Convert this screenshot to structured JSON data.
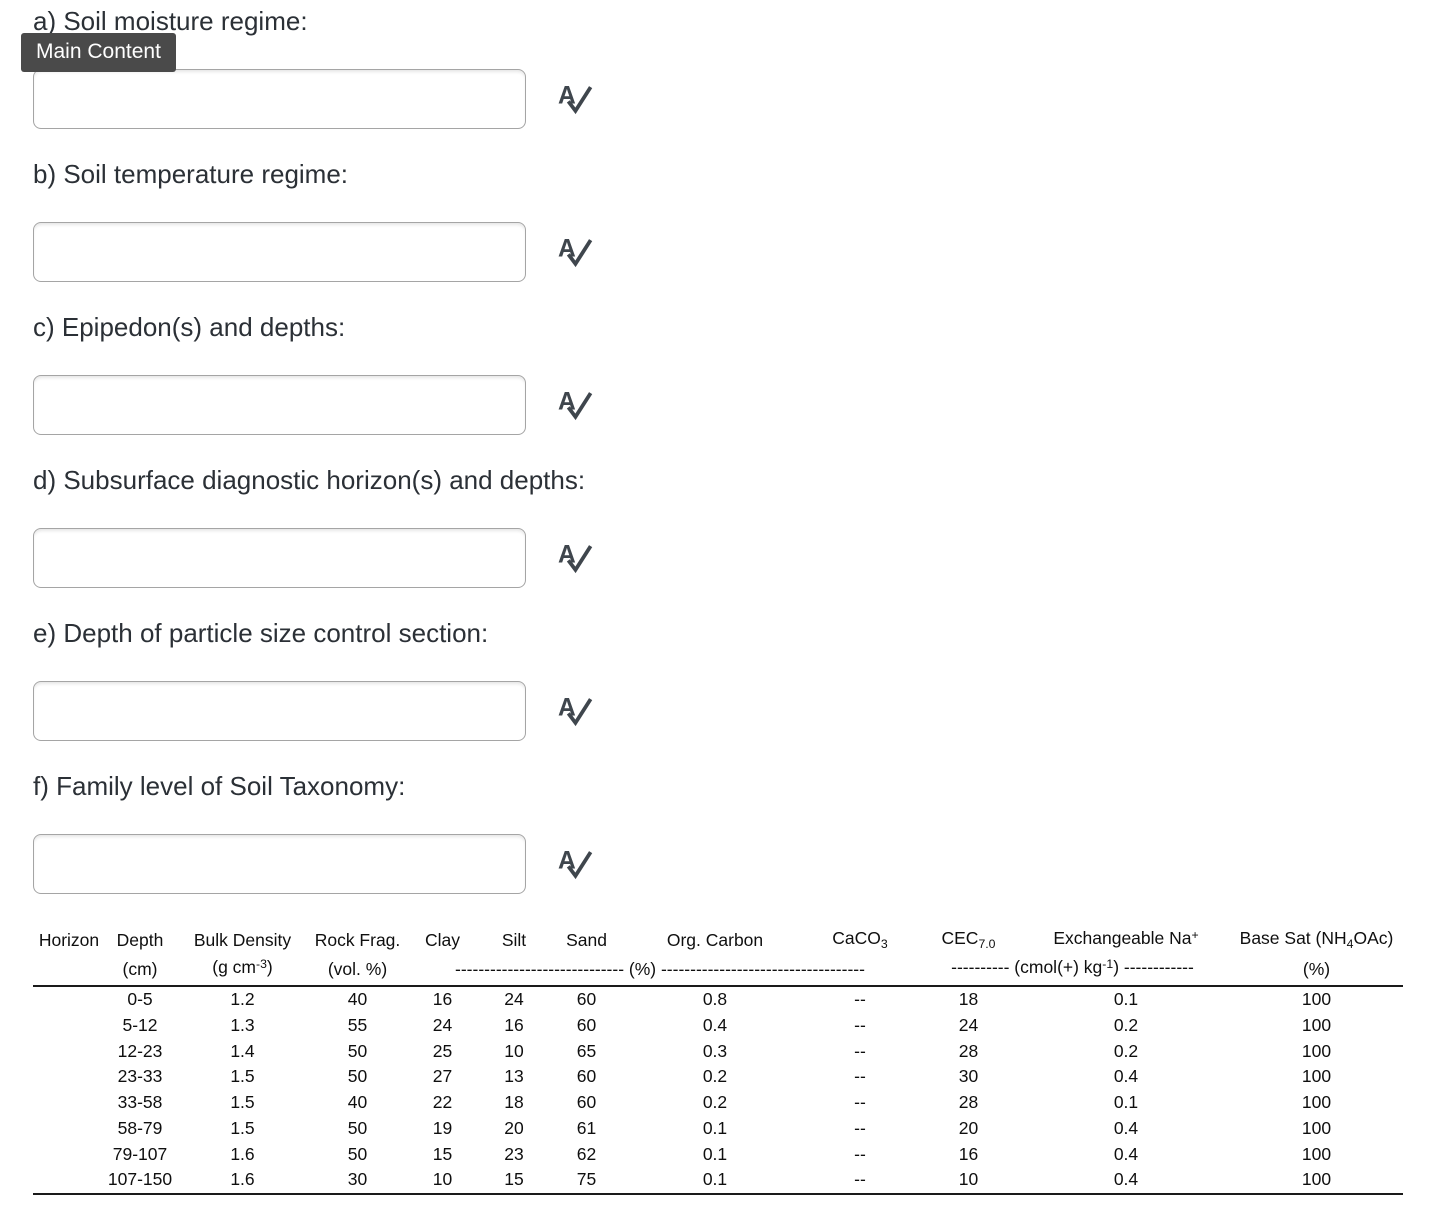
{
  "badge": {
    "label": "Main Content"
  },
  "colors": {
    "badge_bg": "#4a4a4a",
    "badge_text": "#ffffff",
    "icon": "#3f464d",
    "heading_text": "#2b3036",
    "table_rule": "#1a1a1a",
    "input_border": "#a5a5a5"
  },
  "questions": [
    {
      "id": "a",
      "label": "a) Soil moisture regime:",
      "value": "",
      "placeholder": ""
    },
    {
      "id": "b",
      "label": "b) Soil temperature regime:",
      "value": "",
      "placeholder": ""
    },
    {
      "id": "c",
      "label": "c) Epipedon(s) and depths:",
      "value": "",
      "placeholder": ""
    },
    {
      "id": "d",
      "label": "d) Subsurface diagnostic horizon(s) and depths:",
      "value": "",
      "placeholder": ""
    },
    {
      "id": "e",
      "label": "e) Depth of particle size control section:",
      "value": "",
      "placeholder": ""
    },
    {
      "id": "f",
      "label": "f) Family level of Soil Taxonomy:",
      "value": "",
      "placeholder": ""
    }
  ],
  "spellcheck_icon": "spellcheck-icon",
  "table": {
    "header": [
      [
        {
          "t": "Horizon"
        }
      ],
      [
        {
          "t": "Depth"
        }
      ],
      [
        {
          "t": "Bulk Density"
        }
      ],
      [
        {
          "t": "Rock Frag."
        }
      ],
      [
        {
          "t": "Clay"
        }
      ],
      [
        {
          "t": "Silt"
        }
      ],
      [
        {
          "t": "Sand"
        }
      ],
      [
        {
          "t": "Org. Carbon"
        }
      ],
      [
        {
          "t": "CaCO"
        },
        {
          "sub": "3"
        }
      ],
      [
        {
          "t": "CEC"
        },
        {
          "sub": "7.0"
        }
      ],
      [
        {
          "t": "Exchangeable Na"
        },
        {
          "sup": "+"
        }
      ],
      [
        {
          "t": "Base Sat (NH"
        },
        {
          "sub": "4"
        },
        {
          "t": "OAc)"
        }
      ]
    ],
    "subheader": [
      {
        "span": 1,
        "seg": []
      },
      {
        "span": 1,
        "seg": [
          {
            "t": "(cm)"
          }
        ]
      },
      {
        "span": 1,
        "seg": [
          {
            "t": "(g cm"
          },
          {
            "sup": "-3"
          },
          {
            "t": ")"
          }
        ]
      },
      {
        "span": 1,
        "seg": [
          {
            "t": "(vol. %)"
          }
        ]
      },
      {
        "span": 5,
        "seg": [
          {
            "t": "----------------------------- (%) -----------------------------------"
          }
        ]
      },
      {
        "span": 2,
        "seg": [
          {
            "t": "---------- (cmol(+) kg"
          },
          {
            "sup": "-1"
          },
          {
            "t": ") ------------"
          }
        ]
      },
      {
        "span": 1,
        "seg": [
          {
            "t": "(%)"
          }
        ]
      }
    ],
    "rows": [
      [
        "",
        "0-5",
        "1.2",
        "40",
        "16",
        "24",
        "60",
        "0.8",
        "--",
        "18",
        "0.1",
        "100"
      ],
      [
        "",
        "5-12",
        "1.3",
        "55",
        "24",
        "16",
        "60",
        "0.4",
        "--",
        "24",
        "0.2",
        "100"
      ],
      [
        "",
        "12-23",
        "1.4",
        "50",
        "25",
        "10",
        "65",
        "0.3",
        "--",
        "28",
        "0.2",
        "100"
      ],
      [
        "",
        "23-33",
        "1.5",
        "50",
        "27",
        "13",
        "60",
        "0.2",
        "--",
        "30",
        "0.4",
        "100"
      ],
      [
        "",
        "33-58",
        "1.5",
        "40",
        "22",
        "18",
        "60",
        "0.2",
        "--",
        "28",
        "0.1",
        "100"
      ],
      [
        "",
        "58-79",
        "1.5",
        "50",
        "19",
        "20",
        "61",
        "0.1",
        "--",
        "20",
        "0.4",
        "100"
      ],
      [
        "",
        "79-107",
        "1.6",
        "50",
        "15",
        "23",
        "62",
        "0.1",
        "--",
        "16",
        "0.4",
        "100"
      ],
      [
        "",
        "107-150",
        "1.6",
        "30",
        "10",
        "15",
        "75",
        "0.1",
        "--",
        "10",
        "0.4",
        "100"
      ]
    ]
  }
}
